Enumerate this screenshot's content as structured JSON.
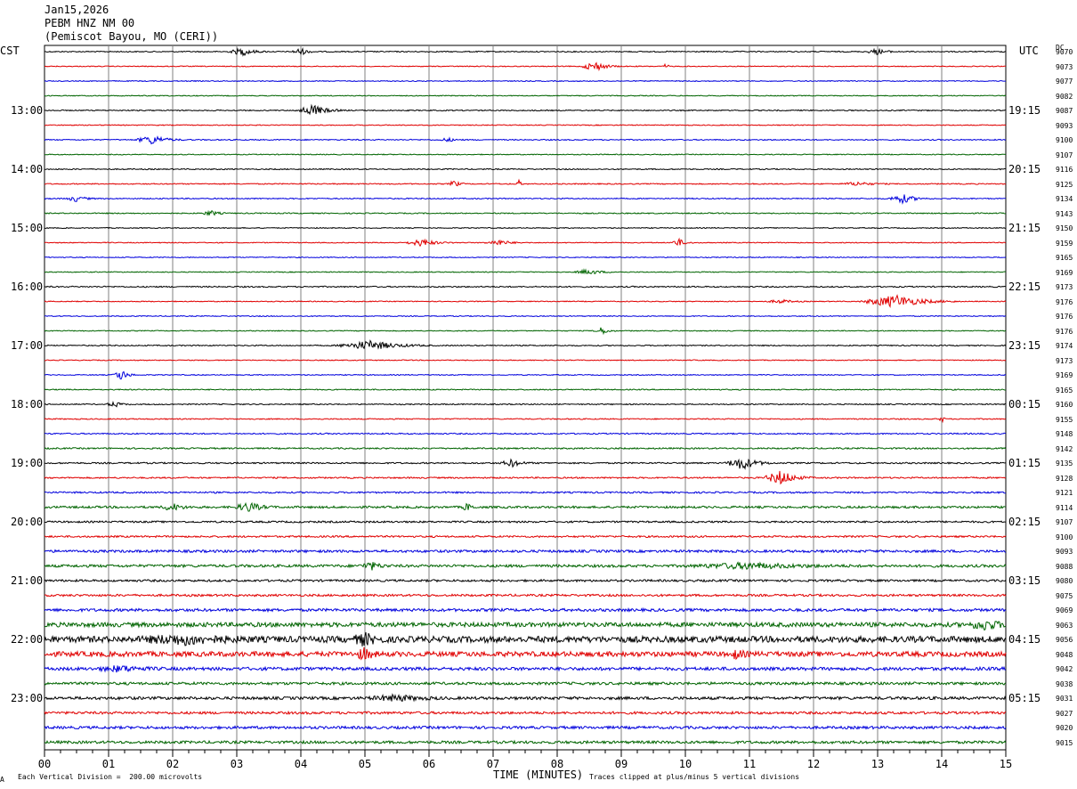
{
  "header": {
    "date": "Jan15,2026",
    "station": "PEBM HNZ NM 00",
    "location": "(Pemiscot Bayou, MO (CERI))",
    "left_tz": "CST",
    "right_tz": "UTC",
    "dc_label": "DC"
  },
  "footer": {
    "scale_note": "Each Vertical Division =  200.00 microvolts",
    "clip_note": "Traces clipped at plus/minus 5 vertical divisions",
    "corner_mark": "A"
  },
  "colors": {
    "trace_cycle": [
      "#000000",
      "#e00000",
      "#0000dd",
      "#006400"
    ],
    "grid": "#808080"
  },
  "chart_data": {
    "type": "line",
    "xlabel": "TIME (MINUTES)",
    "x_ticks": [
      "00",
      "01",
      "02",
      "03",
      "04",
      "05",
      "06",
      "07",
      "08",
      "09",
      "10",
      "11",
      "12",
      "13",
      "14",
      "15"
    ],
    "xlim": [
      0,
      15
    ],
    "left_hour_labels": [
      "13:00",
      "14:00",
      "15:00",
      "16:00",
      "17:00",
      "18:00",
      "19:00",
      "20:00",
      "21:00",
      "22:00",
      "23:00"
    ],
    "right_hour_labels": [
      "19:15",
      "20:15",
      "21:15",
      "22:15",
      "23:15",
      "00:15",
      "01:15",
      "02:15",
      "03:15",
      "04:15",
      "05:15"
    ],
    "hour_label_rows": [
      4,
      8,
      12,
      16,
      20,
      24,
      28,
      32,
      36,
      40,
      44
    ],
    "dc_offsets": [
      "9070",
      "9073",
      "9077",
      "9082",
      "9087",
      "9093",
      "9100",
      "9107",
      "9116",
      "9125",
      "9134",
      "9143",
      "9150",
      "9159",
      "9165",
      "9169",
      "9173",
      "9176",
      "9176",
      "9176",
      "9174",
      "9173",
      "9169",
      "9165",
      "9160",
      "9155",
      "9148",
      "9142",
      "9135",
      "9128",
      "9121",
      "9114",
      "9107",
      "9100",
      "9093",
      "9088",
      "9080",
      "9075",
      "9069",
      "9063",
      "9056",
      "9048",
      "9042",
      "9038",
      "9031",
      "9027",
      "9020",
      "9015"
    ],
    "noise_level": [
      0.6,
      0.5,
      0.5,
      0.5,
      0.6,
      0.5,
      0.6,
      0.5,
      0.6,
      0.6,
      0.6,
      0.6,
      0.5,
      0.5,
      0.5,
      0.5,
      0.7,
      0.5,
      0.5,
      0.5,
      0.6,
      0.5,
      0.5,
      0.6,
      0.6,
      0.6,
      0.7,
      0.8,
      0.8,
      0.8,
      0.9,
      1.2,
      1.0,
      1.0,
      1.4,
      1.5,
      1.2,
      1.2,
      1.6,
      2.5,
      3.5,
      2.8,
      1.8,
      1.5,
      1.6,
      1.4,
      1.5,
      1.5
    ],
    "events": [
      {
        "row": 0,
        "minute": 3.1,
        "amplitude": 4,
        "duration": 0.5
      },
      {
        "row": 0,
        "minute": 4.0,
        "amplitude": 4,
        "duration": 0.3
      },
      {
        "row": 0,
        "minute": 13.0,
        "amplitude": 3,
        "duration": 0.4
      },
      {
        "row": 1,
        "minute": 8.6,
        "amplitude": 5,
        "duration": 0.5
      },
      {
        "row": 1,
        "minute": 9.7,
        "amplitude": 3,
        "duration": 0.1
      },
      {
        "row": 4,
        "minute": 4.2,
        "amplitude": 6,
        "duration": 0.6
      },
      {
        "row": 6,
        "minute": 1.7,
        "amplitude": 5,
        "duration": 0.6
      },
      {
        "row": 6,
        "minute": 6.3,
        "amplitude": 2,
        "duration": 0.3
      },
      {
        "row": 9,
        "minute": 6.4,
        "amplitude": 4,
        "duration": 0.2
      },
      {
        "row": 9,
        "minute": 7.4,
        "amplitude": 4,
        "duration": 0.1
      },
      {
        "row": 9,
        "minute": 12.7,
        "amplitude": 2,
        "duration": 0.6
      },
      {
        "row": 10,
        "minute": 0.5,
        "amplitude": 3,
        "duration": 0.4
      },
      {
        "row": 10,
        "minute": 13.4,
        "amplitude": 5,
        "duration": 0.5
      },
      {
        "row": 11,
        "minute": 2.6,
        "amplitude": 3,
        "duration": 0.3
      },
      {
        "row": 13,
        "minute": 5.9,
        "amplitude": 4,
        "duration": 0.6
      },
      {
        "row": 13,
        "minute": 7.1,
        "amplitude": 3,
        "duration": 0.5
      },
      {
        "row": 13,
        "minute": 9.9,
        "amplitude": 4,
        "duration": 0.3
      },
      {
        "row": 15,
        "minute": 8.5,
        "amplitude": 3,
        "duration": 0.5
      },
      {
        "row": 17,
        "minute": 11.5,
        "amplitude": 2,
        "duration": 0.5
      },
      {
        "row": 17,
        "minute": 13.3,
        "amplitude": 7,
        "duration": 1.2
      },
      {
        "row": 19,
        "minute": 8.7,
        "amplitude": 4,
        "duration": 0.3
      },
      {
        "row": 20,
        "minute": 5.1,
        "amplitude": 5,
        "duration": 1.2
      },
      {
        "row": 22,
        "minute": 1.2,
        "amplitude": 6,
        "duration": 0.3
      },
      {
        "row": 24,
        "minute": 1.1,
        "amplitude": 3,
        "duration": 0.3
      },
      {
        "row": 25,
        "minute": 14.0,
        "amplitude": 4,
        "duration": 0.1
      },
      {
        "row": 28,
        "minute": 7.3,
        "amplitude": 4,
        "duration": 0.4
      },
      {
        "row": 28,
        "minute": 10.9,
        "amplitude": 7,
        "duration": 0.6
      },
      {
        "row": 29,
        "minute": 11.5,
        "amplitude": 8,
        "duration": 0.6
      },
      {
        "row": 31,
        "minute": 2.0,
        "amplitude": 4,
        "duration": 0.4
      },
      {
        "row": 31,
        "minute": 3.2,
        "amplitude": 5,
        "duration": 0.5
      },
      {
        "row": 31,
        "minute": 6.6,
        "amplitude": 4,
        "duration": 0.2
      },
      {
        "row": 35,
        "minute": 5.1,
        "amplitude": 4,
        "duration": 0.4
      },
      {
        "row": 35,
        "minute": 11.0,
        "amplitude": 3,
        "duration": 2.0
      },
      {
        "row": 39,
        "minute": 14.7,
        "amplitude": 5,
        "duration": 0.6
      },
      {
        "row": 40,
        "minute": 2.2,
        "amplitude": 4,
        "duration": 1.5
      },
      {
        "row": 40,
        "minute": 5.0,
        "amplitude": 6,
        "duration": 0.4
      },
      {
        "row": 41,
        "minute": 5.0,
        "amplitude": 6,
        "duration": 0.3
      },
      {
        "row": 41,
        "minute": 10.8,
        "amplitude": 4,
        "duration": 0.3
      },
      {
        "row": 42,
        "minute": 1.2,
        "amplitude": 3,
        "duration": 0.8
      },
      {
        "row": 44,
        "minute": 5.5,
        "amplitude": 3,
        "duration": 1.0
      }
    ]
  }
}
